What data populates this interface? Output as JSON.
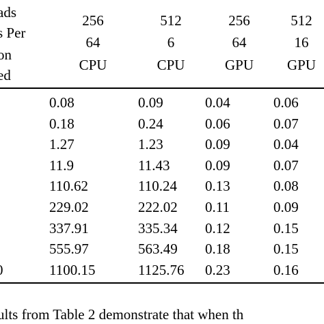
{
  "table": {
    "row_header": [
      "ads",
      "s Per",
      "on",
      "ed"
    ],
    "columns": [
      [
        "256",
        "64",
        "CPU"
      ],
      [
        "512",
        "6",
        "CPU"
      ],
      [
        "256",
        "64",
        "GPU"
      ],
      [
        "512",
        "16",
        "GPU"
      ]
    ],
    "rows": [
      {
        "cells": [
          "0.08",
          "0.09",
          "0.04",
          "0.06"
        ]
      },
      {
        "cells": [
          "0.18",
          "0.24",
          "0.06",
          "0.07"
        ]
      },
      {
        "cells": [
          "1.27",
          "1.23",
          "0.09",
          "0.04"
        ]
      },
      {
        "cells": [
          "11.9",
          "11.43",
          "0.09",
          "0.07"
        ]
      },
      {
        "cells": [
          "110.62",
          "110.24",
          "0.13",
          "0.08"
        ]
      },
      {
        "cells": [
          "229.02",
          "222.02",
          "0.11",
          "0.09"
        ]
      },
      {
        "cells": [
          "337.91",
          "335.34",
          "0.12",
          "0.15"
        ]
      },
      {
        "cells": [
          "555.97",
          "563.49",
          "0.18",
          "0.15"
        ]
      },
      {
        "label": "0",
        "cells": [
          "1100.15",
          "1125.76",
          "0.23",
          "0.16"
        ]
      }
    ]
  },
  "footer_text": "ults from Table 2 demonstrate that when th"
}
